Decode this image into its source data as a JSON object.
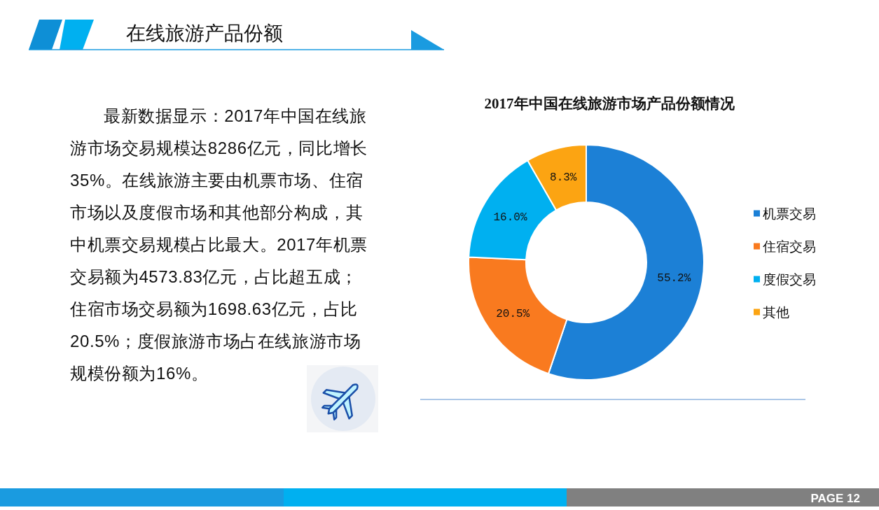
{
  "chart_data": {
    "type": "donut",
    "title": "2017年中国在线旅游市场产品份额情况",
    "categories": [
      "机票交易",
      "住宿交易",
      "度假交易",
      "其他"
    ],
    "values": [
      55.2,
      20.5,
      16.0,
      8.3
    ],
    "colors": [
      "#1c80d6",
      "#f97a1f",
      "#00b0f0",
      "#fca412"
    ],
    "value_labels": [
      "55.2%",
      "20.5%",
      "16.0%",
      "8.3%"
    ],
    "legend": "right",
    "annotations": [
      "在线旅游产品份额",
      "最新数据显示：2017年中国在线旅游市场交易规模达8286亿元，同比增长35%。在线旅游主要由机票市场、住宿市场以及度假市场和其他部分构成，其中机票交易规模占比最大。2017年机票交易额为4573.83亿元，占比超五成；住宿市场交易额为1698.63亿元，占比20.5%；度假旅游市场占在线旅游市场规模份额为16%。",
      "PAGE 12"
    ]
  }
}
